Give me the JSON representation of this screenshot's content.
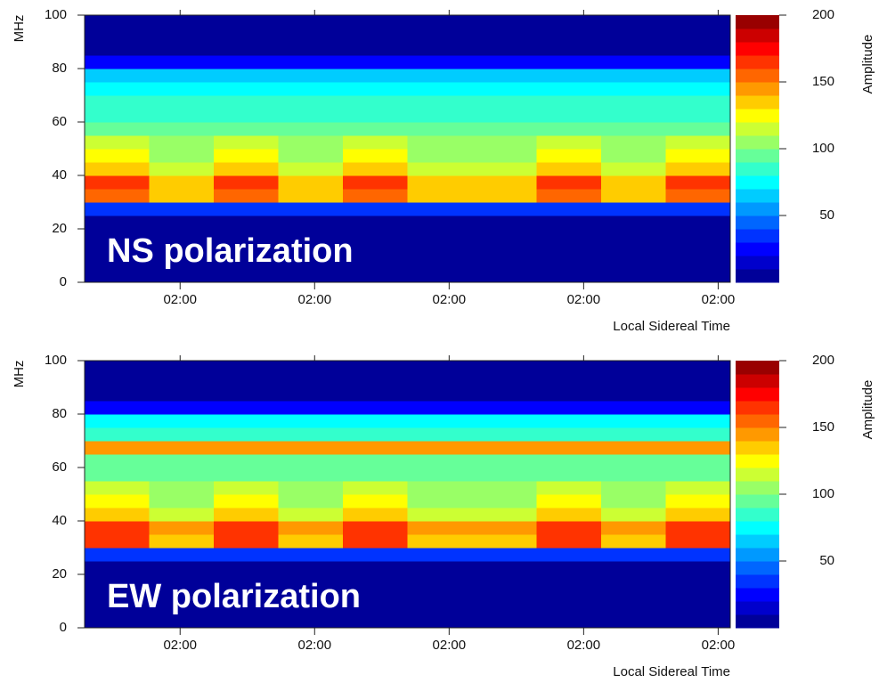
{
  "chart_data": [
    {
      "type": "heatmap",
      "annotation": "NS polarization",
      "y_label": "MHz",
      "x_label": "Local Sidereal Time",
      "colorbar_label": "Amplitude",
      "xlim": [
        0,
        4.8
      ],
      "xticks": [
        {
          "value": 0.71,
          "label": "02:00"
        },
        {
          "value": 1.71,
          "label": "02:00"
        },
        {
          "value": 2.71,
          "label": "02:00"
        },
        {
          "value": 3.71,
          "label": "02:00"
        },
        {
          "value": 4.71,
          "label": "02:00"
        }
      ],
      "ylim": [
        0,
        100
      ],
      "yticks": [
        0,
        20,
        40,
        60,
        80,
        100
      ],
      "clim": [
        0,
        200
      ],
      "cticks": [
        50,
        100,
        150,
        200
      ],
      "colormap": "jet",
      "color_levels": 20,
      "x_bins": [
        0,
        0.48,
        0.96,
        1.44,
        1.92,
        2.4,
        2.88,
        3.36,
        3.84,
        4.32,
        4.8
      ],
      "y_bins": [
        0,
        5,
        10,
        15,
        20,
        25,
        30,
        35,
        40,
        45,
        50,
        55,
        60,
        65,
        70,
        75,
        80,
        85,
        90,
        95,
        100
      ],
      "values": [
        [
          8,
          8,
          8,
          8,
          8,
          8,
          8,
          8,
          8,
          8
        ],
        [
          8,
          8,
          8,
          8,
          8,
          8,
          8,
          8,
          8,
          8
        ],
        [
          8,
          8,
          8,
          8,
          8,
          8,
          8,
          8,
          8,
          8
        ],
        [
          8,
          8,
          8,
          8,
          8,
          8,
          8,
          8,
          8,
          8
        ],
        [
          8,
          8,
          8,
          8,
          8,
          8,
          8,
          8,
          8,
          8
        ],
        [
          35,
          35,
          35,
          35,
          35,
          35,
          35,
          35,
          35,
          35
        ],
        [
          155,
          130,
          155,
          130,
          155,
          130,
          130,
          155,
          130,
          155
        ],
        [
          160,
          135,
          160,
          135,
          160,
          135,
          135,
          160,
          135,
          160
        ],
        [
          135,
          115,
          135,
          115,
          135,
          115,
          115,
          135,
          115,
          135
        ],
        [
          125,
          105,
          125,
          105,
          125,
          105,
          105,
          125,
          105,
          125
        ],
        [
          110,
          100,
          110,
          100,
          110,
          100,
          100,
          110,
          100,
          110
        ],
        [
          92,
          92,
          92,
          92,
          92,
          92,
          92,
          92,
          92,
          92
        ],
        [
          88,
          88,
          88,
          88,
          88,
          88,
          88,
          88,
          88,
          88
        ],
        [
          82,
          82,
          82,
          82,
          82,
          82,
          82,
          82,
          82,
          82
        ],
        [
          78,
          78,
          78,
          78,
          78,
          78,
          78,
          78,
          78,
          78
        ],
        [
          65,
          65,
          65,
          65,
          65,
          65,
          65,
          65,
          65,
          65
        ],
        [
          22,
          22,
          22,
          22,
          22,
          22,
          22,
          22,
          22,
          22
        ],
        [
          8,
          8,
          8,
          8,
          8,
          8,
          8,
          8,
          8,
          8
        ],
        [
          8,
          8,
          8,
          8,
          8,
          8,
          8,
          8,
          8,
          8
        ],
        [
          8,
          8,
          8,
          8,
          8,
          8,
          8,
          8,
          8,
          8
        ]
      ]
    },
    {
      "type": "heatmap",
      "annotation": "EW polarization",
      "y_label": "MHz",
      "x_label": "Local Sidereal Time",
      "colorbar_label": "Amplitude",
      "xlim": [
        0,
        4.8
      ],
      "xticks": [
        {
          "value": 0.71,
          "label": "02:00"
        },
        {
          "value": 1.71,
          "label": "02:00"
        },
        {
          "value": 2.71,
          "label": "02:00"
        },
        {
          "value": 3.71,
          "label": "02:00"
        },
        {
          "value": 4.71,
          "label": "02:00"
        }
      ],
      "ylim": [
        0,
        100
      ],
      "yticks": [
        0,
        20,
        40,
        60,
        80,
        100
      ],
      "clim": [
        0,
        200
      ],
      "cticks": [
        50,
        100,
        150,
        200
      ],
      "colormap": "jet",
      "color_levels": 20,
      "x_bins": [
        0,
        0.48,
        0.96,
        1.44,
        1.92,
        2.4,
        2.88,
        3.36,
        3.84,
        4.32,
        4.8
      ],
      "y_bins": [
        0,
        5,
        10,
        15,
        20,
        25,
        30,
        35,
        40,
        45,
        50,
        55,
        60,
        65,
        70,
        75,
        80,
        85,
        90,
        95,
        100
      ],
      "values": [
        [
          8,
          8,
          8,
          8,
          8,
          8,
          8,
          8,
          8,
          8
        ],
        [
          8,
          8,
          8,
          8,
          8,
          8,
          8,
          8,
          8,
          8
        ],
        [
          8,
          8,
          8,
          8,
          8,
          8,
          8,
          8,
          8,
          8
        ],
        [
          8,
          8,
          8,
          8,
          8,
          8,
          8,
          8,
          8,
          8
        ],
        [
          8,
          8,
          8,
          8,
          8,
          8,
          8,
          8,
          8,
          8
        ],
        [
          38,
          38,
          38,
          38,
          38,
          38,
          38,
          38,
          38,
          38
        ],
        [
          160,
          135,
          160,
          135,
          160,
          135,
          135,
          160,
          135,
          160
        ],
        [
          165,
          140,
          165,
          140,
          165,
          140,
          140,
          165,
          140,
          165
        ],
        [
          138,
          118,
          138,
          118,
          138,
          118,
          118,
          138,
          118,
          138
        ],
        [
          128,
          108,
          128,
          108,
          128,
          108,
          108,
          128,
          108,
          128
        ],
        [
          112,
          102,
          112,
          102,
          112,
          102,
          102,
          112,
          102,
          112
        ],
        [
          95,
          95,
          95,
          95,
          95,
          95,
          95,
          95,
          95,
          95
        ],
        [
          95,
          95,
          95,
          95,
          95,
          95,
          95,
          95,
          95,
          95
        ],
        [
          140,
          140,
          140,
          140,
          140,
          140,
          140,
          140,
          140,
          140
        ],
        [
          80,
          80,
          80,
          80,
          80,
          80,
          80,
          80,
          80,
          80
        ],
        [
          70,
          70,
          70,
          70,
          70,
          70,
          70,
          70,
          70,
          70
        ],
        [
          28,
          28,
          28,
          28,
          28,
          28,
          28,
          28,
          28,
          28
        ],
        [
          8,
          8,
          8,
          8,
          8,
          8,
          8,
          8,
          8,
          8
        ],
        [
          8,
          8,
          8,
          8,
          8,
          8,
          8,
          8,
          8,
          8
        ],
        [
          8,
          8,
          8,
          8,
          8,
          8,
          8,
          8,
          8,
          8
        ]
      ]
    }
  ]
}
